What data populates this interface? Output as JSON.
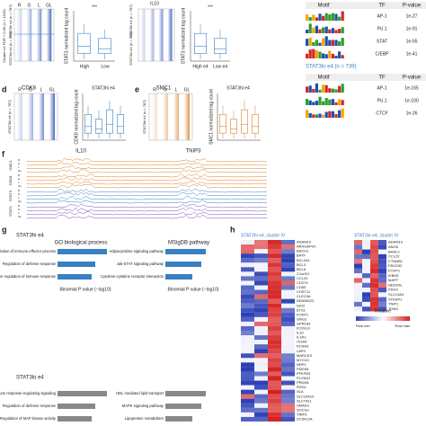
{
  "panel_a": {
    "columns": [
      "R",
      "G",
      "L",
      "GL"
    ],
    "cluster_label": "Cluster e4 FDR < 0.05 (n = 1526)",
    "hi_label": "STAT3hi e4 (n = 787)",
    "lo_label": "STAT3lo e4 (n = 739)"
  },
  "panel_b": {
    "ylabel": "STAT3 normalized tag count",
    "groups": [
      "High",
      "Low"
    ],
    "sig": "***"
  },
  "panel_c": {
    "gene": "IL10",
    "hi_label": "STAT3hi e4 (n = 787)",
    "lo_label": "STAT3lo e4 (n = 739)",
    "ylabel": "STAT3 normalized tag count",
    "groups": [
      "High e4",
      "Low e4"
    ],
    "sig": "***"
  },
  "motifs_hi": {
    "headers": [
      "Motif",
      "TF",
      "P-value"
    ],
    "rows": [
      [
        "AP-1",
        "1e-27"
      ],
      [
        "PU.1",
        "1e-91"
      ],
      [
        "STAT",
        "1e-55"
      ],
      [
        "C/EBP",
        "1e-41"
      ]
    ]
  },
  "motifs_lo": {
    "title": "STAT3lo e4 (n = 739)",
    "headers": [
      "Motif",
      "TF",
      "P-value"
    ],
    "rows": [
      [
        "AP-1",
        "1e-165"
      ],
      [
        "PU.1",
        "1e-100"
      ],
      [
        "CTCF",
        "1e-26"
      ]
    ]
  },
  "panel_d": {
    "letter": "d",
    "protein": "CDK8",
    "side_label": "STAT3hi e4 (n = 787)",
    "box_title": "STAT3hi e4",
    "ylabel": "CDK8 normalized tag count",
    "columns": [
      "R",
      "G",
      "L",
      "GL"
    ]
  },
  "panel_e": {
    "letter": "e",
    "protein": "SMC1",
    "side_label": "STAT3hi e4 (n = 787)",
    "box_title": "STAT3hi e4",
    "ylabel": "SMC1 normalized tag count",
    "columns": [
      "R",
      "G",
      "L",
      "GL"
    ]
  },
  "panel_f": {
    "letter": "f",
    "genes": [
      "IL10",
      "TNIP3"
    ],
    "groups": [
      "SMC1",
      "CDK8",
      "STAT3",
      "STAT1"
    ],
    "conditions": [
      "R",
      "G",
      "L",
      "GL"
    ]
  },
  "panel_g": {
    "letter": "g",
    "hi_title": "STAT3hi e4",
    "go_title": "GO biological process",
    "msig_title": "MSigDB pathway",
    "hi_go": [
      "Negative regulation of immune effector process",
      "Regulation of defense response",
      "Negative regulation of immune response"
    ],
    "hi_msig": [
      "Adipocytokine signaling pathway",
      "Jak-STAT signaling pathway",
      "Cytokine-cytokine receptor interaction"
    ],
    "xlabel": "Binomial P value (−log10)",
    "lo_title": "STAT3lo e4",
    "lo_go": [
      "Immune response-regulating signaling",
      "Regulation of defense response",
      "Regulation of MAP kinase activity"
    ],
    "lo_msig": [
      "HDL mediated lipid transport",
      "MAPK signaling pathway",
      "Lipoprotein metabolism"
    ]
  },
  "panel_h": {
    "letter": "h",
    "hi_title": "STAT3hi e4, cluster IV",
    "lo_title": "STAT3lo e4, cluster IV",
    "hi_genes": [
      "ADAM19",
      "ARHGAP24",
      "BACH1",
      "BATF",
      "BCL2A1",
      "BCL3",
      "BCL6",
      "C1orf21",
      "CCL20",
      "CD274",
      "CD83",
      "CHST11",
      "CLEC5A",
      "DENND2D",
      "DIO2",
      "ETS1",
      "FOXP1",
      "GNG2",
      "GPR183",
      "ICOSLG",
      "IL10",
      "IL1R1",
      "ITGAV",
      "KCNA3",
      "LAP3",
      "MARCKS",
      "MYO10",
      "NRP1",
      "PDE4B",
      "PFKFB3",
      "PLXNA1",
      "PRDM1",
      "RGS1",
      "SLA",
      "SLC16A10",
      "SLC7A11",
      "SMAD3",
      "SOCS3",
      "TNIP3",
      "ZC3H12A"
    ],
    "lo_genes": [
      "ADAM19",
      "ANO6",
      "BAALC",
      "CCL22",
      "CTNNB1",
      "FBXO32",
      "FOXP1",
      "IKBKE",
      "MAFF",
      "NEDD4L",
      "PDHX",
      "SLC13A3",
      "STEAP1",
      "TNIP1",
      "TOM1"
    ],
    "legend_title": "Relative",
    "legend_min": "Row min",
    "legend_max": "Row max"
  }
}
